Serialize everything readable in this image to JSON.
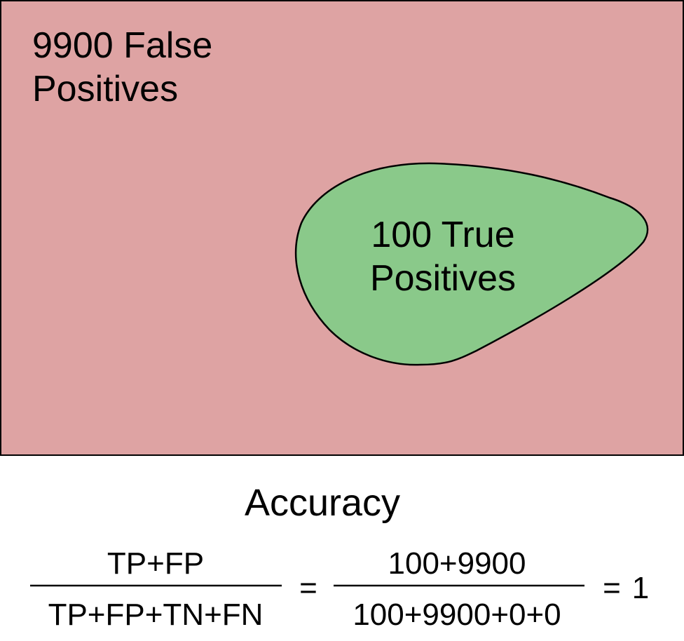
{
  "colors": {
    "false_positive_region": "#dea3a3",
    "true_positive_region": "#8ac98a",
    "outline": "#000000"
  },
  "regions": {
    "false_positives": {
      "line1": "9900 False",
      "line2": "Positives"
    },
    "true_positives": {
      "line1": "100 True",
      "line2": "Positives"
    }
  },
  "formula": {
    "title": "Accuracy",
    "symbolic": {
      "numerator": "TP+FP",
      "denominator": "TP+FP+TN+FN"
    },
    "equals_1": "=",
    "numeric": {
      "numerator": "100+9900",
      "denominator": "100+9900+0+0"
    },
    "equals_2": "=",
    "result": "1"
  }
}
